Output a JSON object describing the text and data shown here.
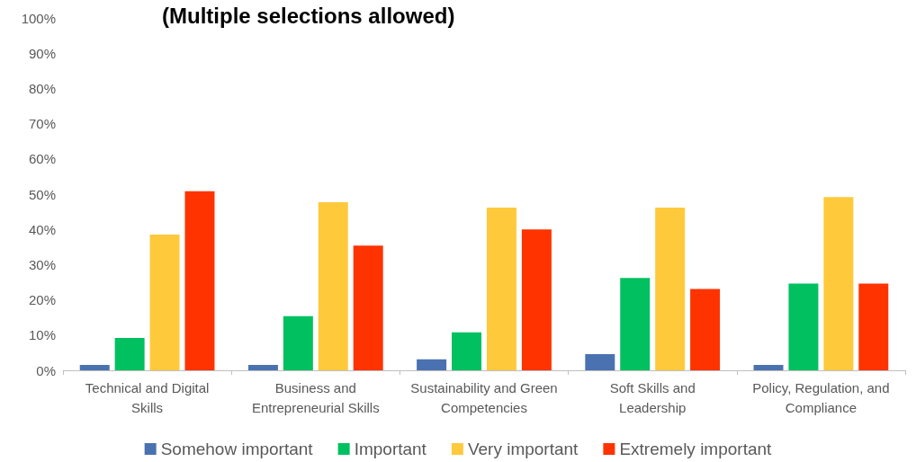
{
  "chart_data": {
    "type": "bar",
    "title": "(Multiple selections allowed)",
    "categories": [
      "Technical and Digital Skills",
      "Business and Entrepreneurial Skills",
      "Sustainability and Green Competencies",
      "Soft Skills and Leadership",
      "Policy, Regulation, and Compliance"
    ],
    "series": [
      {
        "name": "Somehow important",
        "color": "#4a72b0",
        "values": [
          1.5,
          1.5,
          3.1,
          4.6,
          1.5
        ]
      },
      {
        "name": "Important",
        "color": "#00c060",
        "values": [
          9.2,
          15.4,
          10.8,
          26.2,
          24.6
        ]
      },
      {
        "name": "Very important",
        "color": "#ffc93c",
        "values": [
          38.5,
          47.7,
          46.2,
          46.2,
          49.2
        ]
      },
      {
        "name": "Extremely important",
        "color": "#ff3300",
        "values": [
          50.8,
          35.4,
          40.0,
          23.1,
          24.6
        ]
      }
    ],
    "ylim": [
      0,
      100
    ],
    "yticks": [
      {
        "value": 0,
        "label": "0%"
      },
      {
        "value": 10,
        "label": "10%"
      },
      {
        "value": 20,
        "label": "20%"
      },
      {
        "value": 30,
        "label": "30%"
      },
      {
        "value": 40,
        "label": "40%"
      },
      {
        "value": 50,
        "label": "50%"
      },
      {
        "value": 60,
        "label": "60%"
      },
      {
        "value": 70,
        "label": "70%"
      },
      {
        "value": 80,
        "label": "80%"
      },
      {
        "value": 90,
        "label": "90%"
      },
      {
        "value": 100,
        "label": "100%"
      }
    ],
    "grid": false,
    "legend": "bottom"
  }
}
